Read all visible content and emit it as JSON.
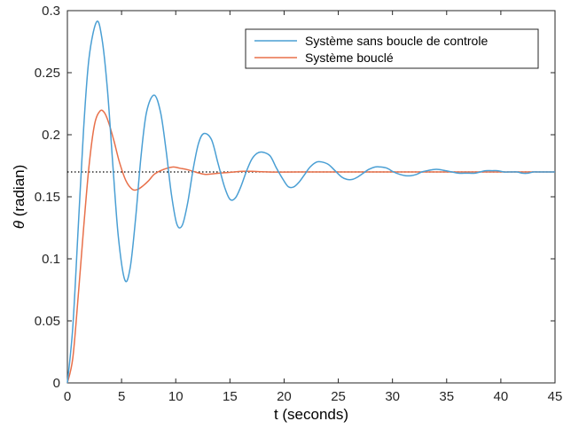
{
  "chart_data": {
    "type": "line",
    "title": "",
    "xlabel": "t (seconds)",
    "ylabel_symbol": "θ",
    "ylabel_rest": " (radian)",
    "xlim": [
      0,
      45
    ],
    "ylim": [
      0,
      0.3
    ],
    "x_ticks": [
      "0",
      "5",
      "10",
      "15",
      "20",
      "25",
      "30",
      "35",
      "40",
      "45"
    ],
    "y_ticks": [
      "0",
      "0.05",
      "0.1",
      "0.15",
      "0.2",
      "0.25",
      "0.3"
    ],
    "grid": false,
    "box": true,
    "legend_position": "top-right",
    "reference_line": {
      "y": 0.17,
      "style": "dotted",
      "color": "#000000"
    },
    "series": [
      {
        "name": "Système sans boucle de controle",
        "color": "#4a9fd4",
        "x": [
          0,
          0.5,
          1,
          1.5,
          2,
          2.7,
          3.2,
          3.7,
          4.2,
          4.7,
          5.3,
          5.8,
          6.3,
          6.8,
          7.3,
          8.0,
          8.6,
          9.1,
          9.6,
          10.1,
          10.6,
          11.1,
          11.6,
          12.1,
          12.6,
          13.3,
          13.9,
          14.5,
          15.0,
          15.5,
          16.0,
          16.5,
          17.0,
          17.5,
          18.0,
          18.7,
          19.3,
          19.9,
          20.4,
          20.9,
          21.4,
          21.9,
          22.4,
          23.0,
          23.5,
          24.1,
          24.7,
          25.3,
          25.8,
          26.3,
          26.8,
          27.3,
          27.8,
          28.4,
          28.9,
          29.5,
          30.1,
          30.7,
          31.2,
          31.7,
          32.2,
          32.7,
          33.2,
          33.8,
          34.3,
          34.9,
          35.5,
          36.1,
          36.6,
          37.1,
          37.6,
          38.1,
          38.6,
          39.2,
          39.7,
          40.3,
          40.9,
          41.5,
          42.0,
          42.5,
          43.0,
          43.5,
          44.0,
          44.5,
          45.0
        ],
        "y": [
          0,
          0.045,
          0.125,
          0.205,
          0.262,
          0.291,
          0.277,
          0.236,
          0.175,
          0.118,
          0.083,
          0.093,
          0.133,
          0.183,
          0.218,
          0.232,
          0.218,
          0.188,
          0.152,
          0.128,
          0.127,
          0.145,
          0.172,
          0.193,
          0.201,
          0.196,
          0.177,
          0.158,
          0.148,
          0.149,
          0.158,
          0.17,
          0.18,
          0.185,
          0.186,
          0.183,
          0.173,
          0.164,
          0.158,
          0.158,
          0.162,
          0.168,
          0.174,
          0.178,
          0.178,
          0.176,
          0.171,
          0.166,
          0.164,
          0.164,
          0.166,
          0.169,
          0.172,
          0.174,
          0.174,
          0.173,
          0.17,
          0.168,
          0.167,
          0.167,
          0.168,
          0.17,
          0.171,
          0.172,
          0.172,
          0.171,
          0.17,
          0.169,
          0.169,
          0.169,
          0.169,
          0.17,
          0.171,
          0.171,
          0.171,
          0.17,
          0.17,
          0.17,
          0.169,
          0.169,
          0.17,
          0.17,
          0.17,
          0.17,
          0.17
        ]
      },
      {
        "name": "Système bouclé",
        "color": "#e8704a",
        "x": [
          0,
          0.5,
          1.0,
          1.5,
          2.0,
          2.5,
          3.0,
          3.4,
          3.8,
          4.3,
          4.8,
          5.4,
          6.0,
          6.5,
          7.0,
          7.5,
          8.0,
          8.6,
          9.2,
          9.8,
          10.4,
          11.0,
          11.6,
          12.2,
          12.8,
          13.4,
          14.0,
          14.7,
          15.4,
          16.2,
          17.0,
          18.0,
          19.0,
          20.0,
          22.0,
          24.0,
          27.0,
          30.0,
          35.0,
          40.0,
          45.0
        ],
        "y": [
          0,
          0.02,
          0.07,
          0.125,
          0.175,
          0.208,
          0.219,
          0.218,
          0.21,
          0.195,
          0.178,
          0.163,
          0.156,
          0.156,
          0.159,
          0.163,
          0.168,
          0.171,
          0.173,
          0.174,
          0.173,
          0.172,
          0.1705,
          0.169,
          0.168,
          0.1685,
          0.169,
          0.1695,
          0.17,
          0.1705,
          0.1705,
          0.1702,
          0.1699,
          0.1699,
          0.17,
          0.17,
          0.17,
          0.17,
          0.17,
          0.17,
          0.17
        ]
      }
    ]
  }
}
